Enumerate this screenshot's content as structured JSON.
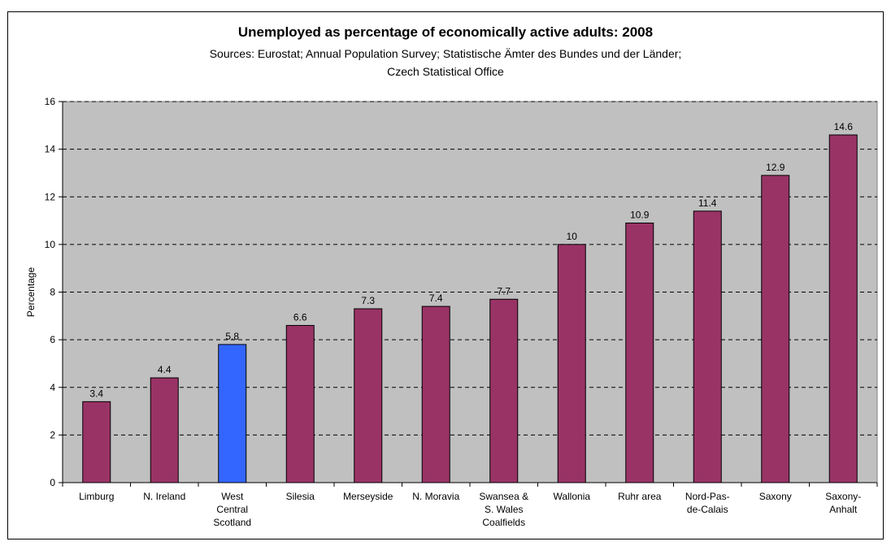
{
  "chart_data": {
    "type": "bar",
    "title": "Unemployed as percentage of economically active adults: 2008",
    "subtitle": "Sources: Eurostat; Annual Population Survey; Statistische Ämter des Bundes und der Länder; Czech Statistical Office",
    "ylabel": "Percentage",
    "xlabel": "",
    "ylim": [
      0,
      16
    ],
    "yticks": [
      0,
      2,
      4,
      6,
      8,
      10,
      12,
      14,
      16
    ],
    "grid": "horizontal dashed",
    "categories": [
      [
        "Limburg"
      ],
      [
        "N. Ireland"
      ],
      [
        "West",
        "Central",
        "Scotland"
      ],
      [
        "Silesia"
      ],
      [
        "Merseyside"
      ],
      [
        "N. Moravia"
      ],
      [
        "Swansea &",
        "S. Wales",
        "Coalfields"
      ],
      [
        "Wallonia"
      ],
      [
        "Ruhr area"
      ],
      [
        "Nord-Pas-",
        "de-Calais"
      ],
      [
        "Saxony"
      ],
      [
        "Saxony-",
        "Anhalt"
      ]
    ],
    "values": [
      3.4,
      4.4,
      5.8,
      6.6,
      7.3,
      7.4,
      7.7,
      10,
      10.9,
      11.4,
      12.9,
      14.6
    ],
    "colors": {
      "default": "#993366",
      "highlight": "#3366FF",
      "plot_background": "#C0C0C0"
    },
    "highlight_index": 2
  }
}
